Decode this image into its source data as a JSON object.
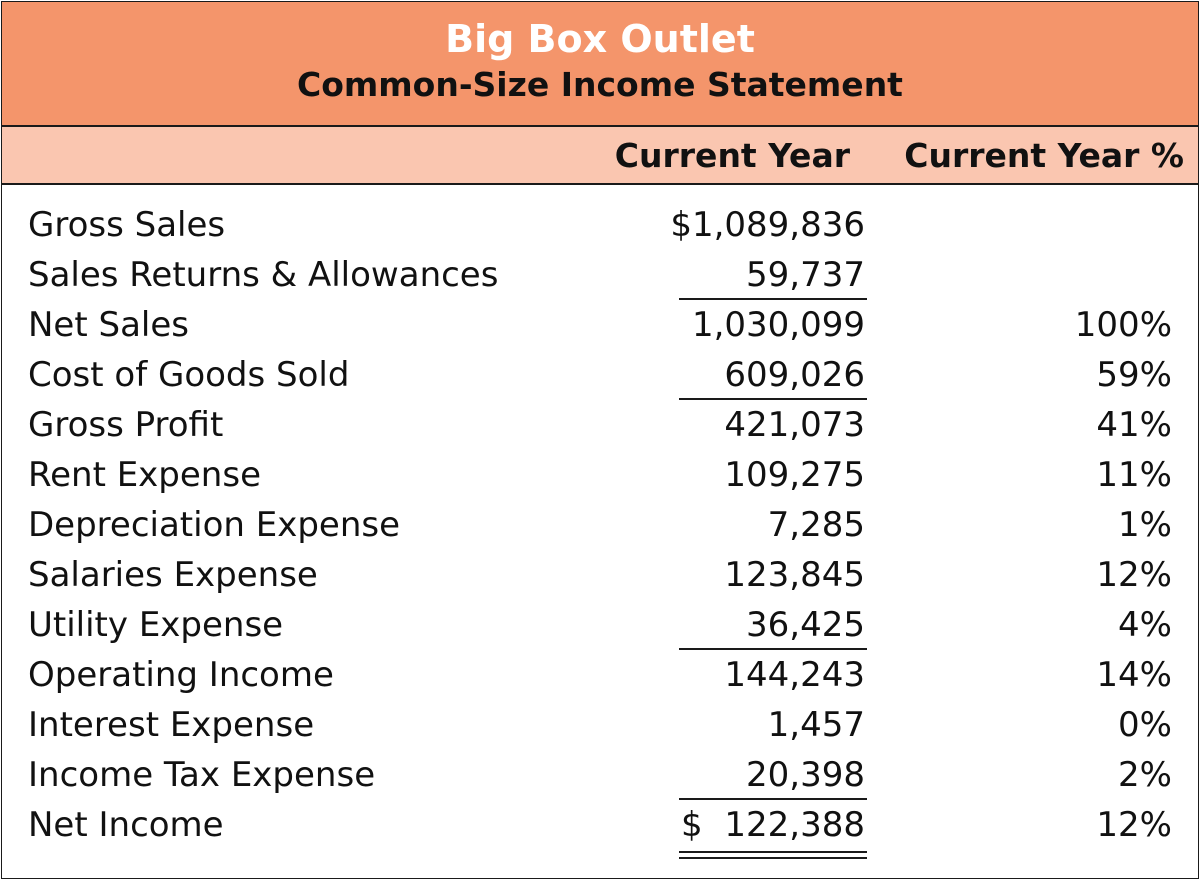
{
  "header": {
    "company": "Big Box Outlet",
    "title": "Common-Size Income Statement"
  },
  "columns": {
    "amount": "Current Year",
    "percent": "Current Year %"
  },
  "rows": [
    {
      "label": "Gross Sales",
      "amount": "$1,089,836",
      "percent": ""
    },
    {
      "label": "Sales Returns & Allowances",
      "amount": "59,737",
      "percent": ""
    },
    {
      "label": "Net Sales",
      "amount": "1,030,099",
      "percent": "100%"
    },
    {
      "label": "Cost of Goods Sold",
      "amount": "609,026",
      "percent": "59%"
    },
    {
      "label": "Gross Profit",
      "amount": "421,073",
      "percent": "41%"
    },
    {
      "label": "Rent Expense",
      "amount": "109,275",
      "percent": "11%"
    },
    {
      "label": "Depreciation Expense",
      "amount": "7,285",
      "percent": "1%"
    },
    {
      "label": "Salaries Expense",
      "amount": "123,845",
      "percent": "12%"
    },
    {
      "label": "Utility Expense",
      "amount": "36,425",
      "percent": "4%"
    },
    {
      "label": "Operating Income",
      "amount": "144,243",
      "percent": "14%"
    },
    {
      "label": "Interest Expense",
      "amount": "1,457",
      "percent": "0%"
    },
    {
      "label": "Income Tax Expense",
      "amount": "20,398",
      "percent": "2%"
    },
    {
      "label": "Net Income",
      "currency": "$",
      "amount": "122,388",
      "percent": "12%"
    }
  ],
  "colors": {
    "title_band": "#f4956b",
    "header_band": "#fac6b0"
  }
}
